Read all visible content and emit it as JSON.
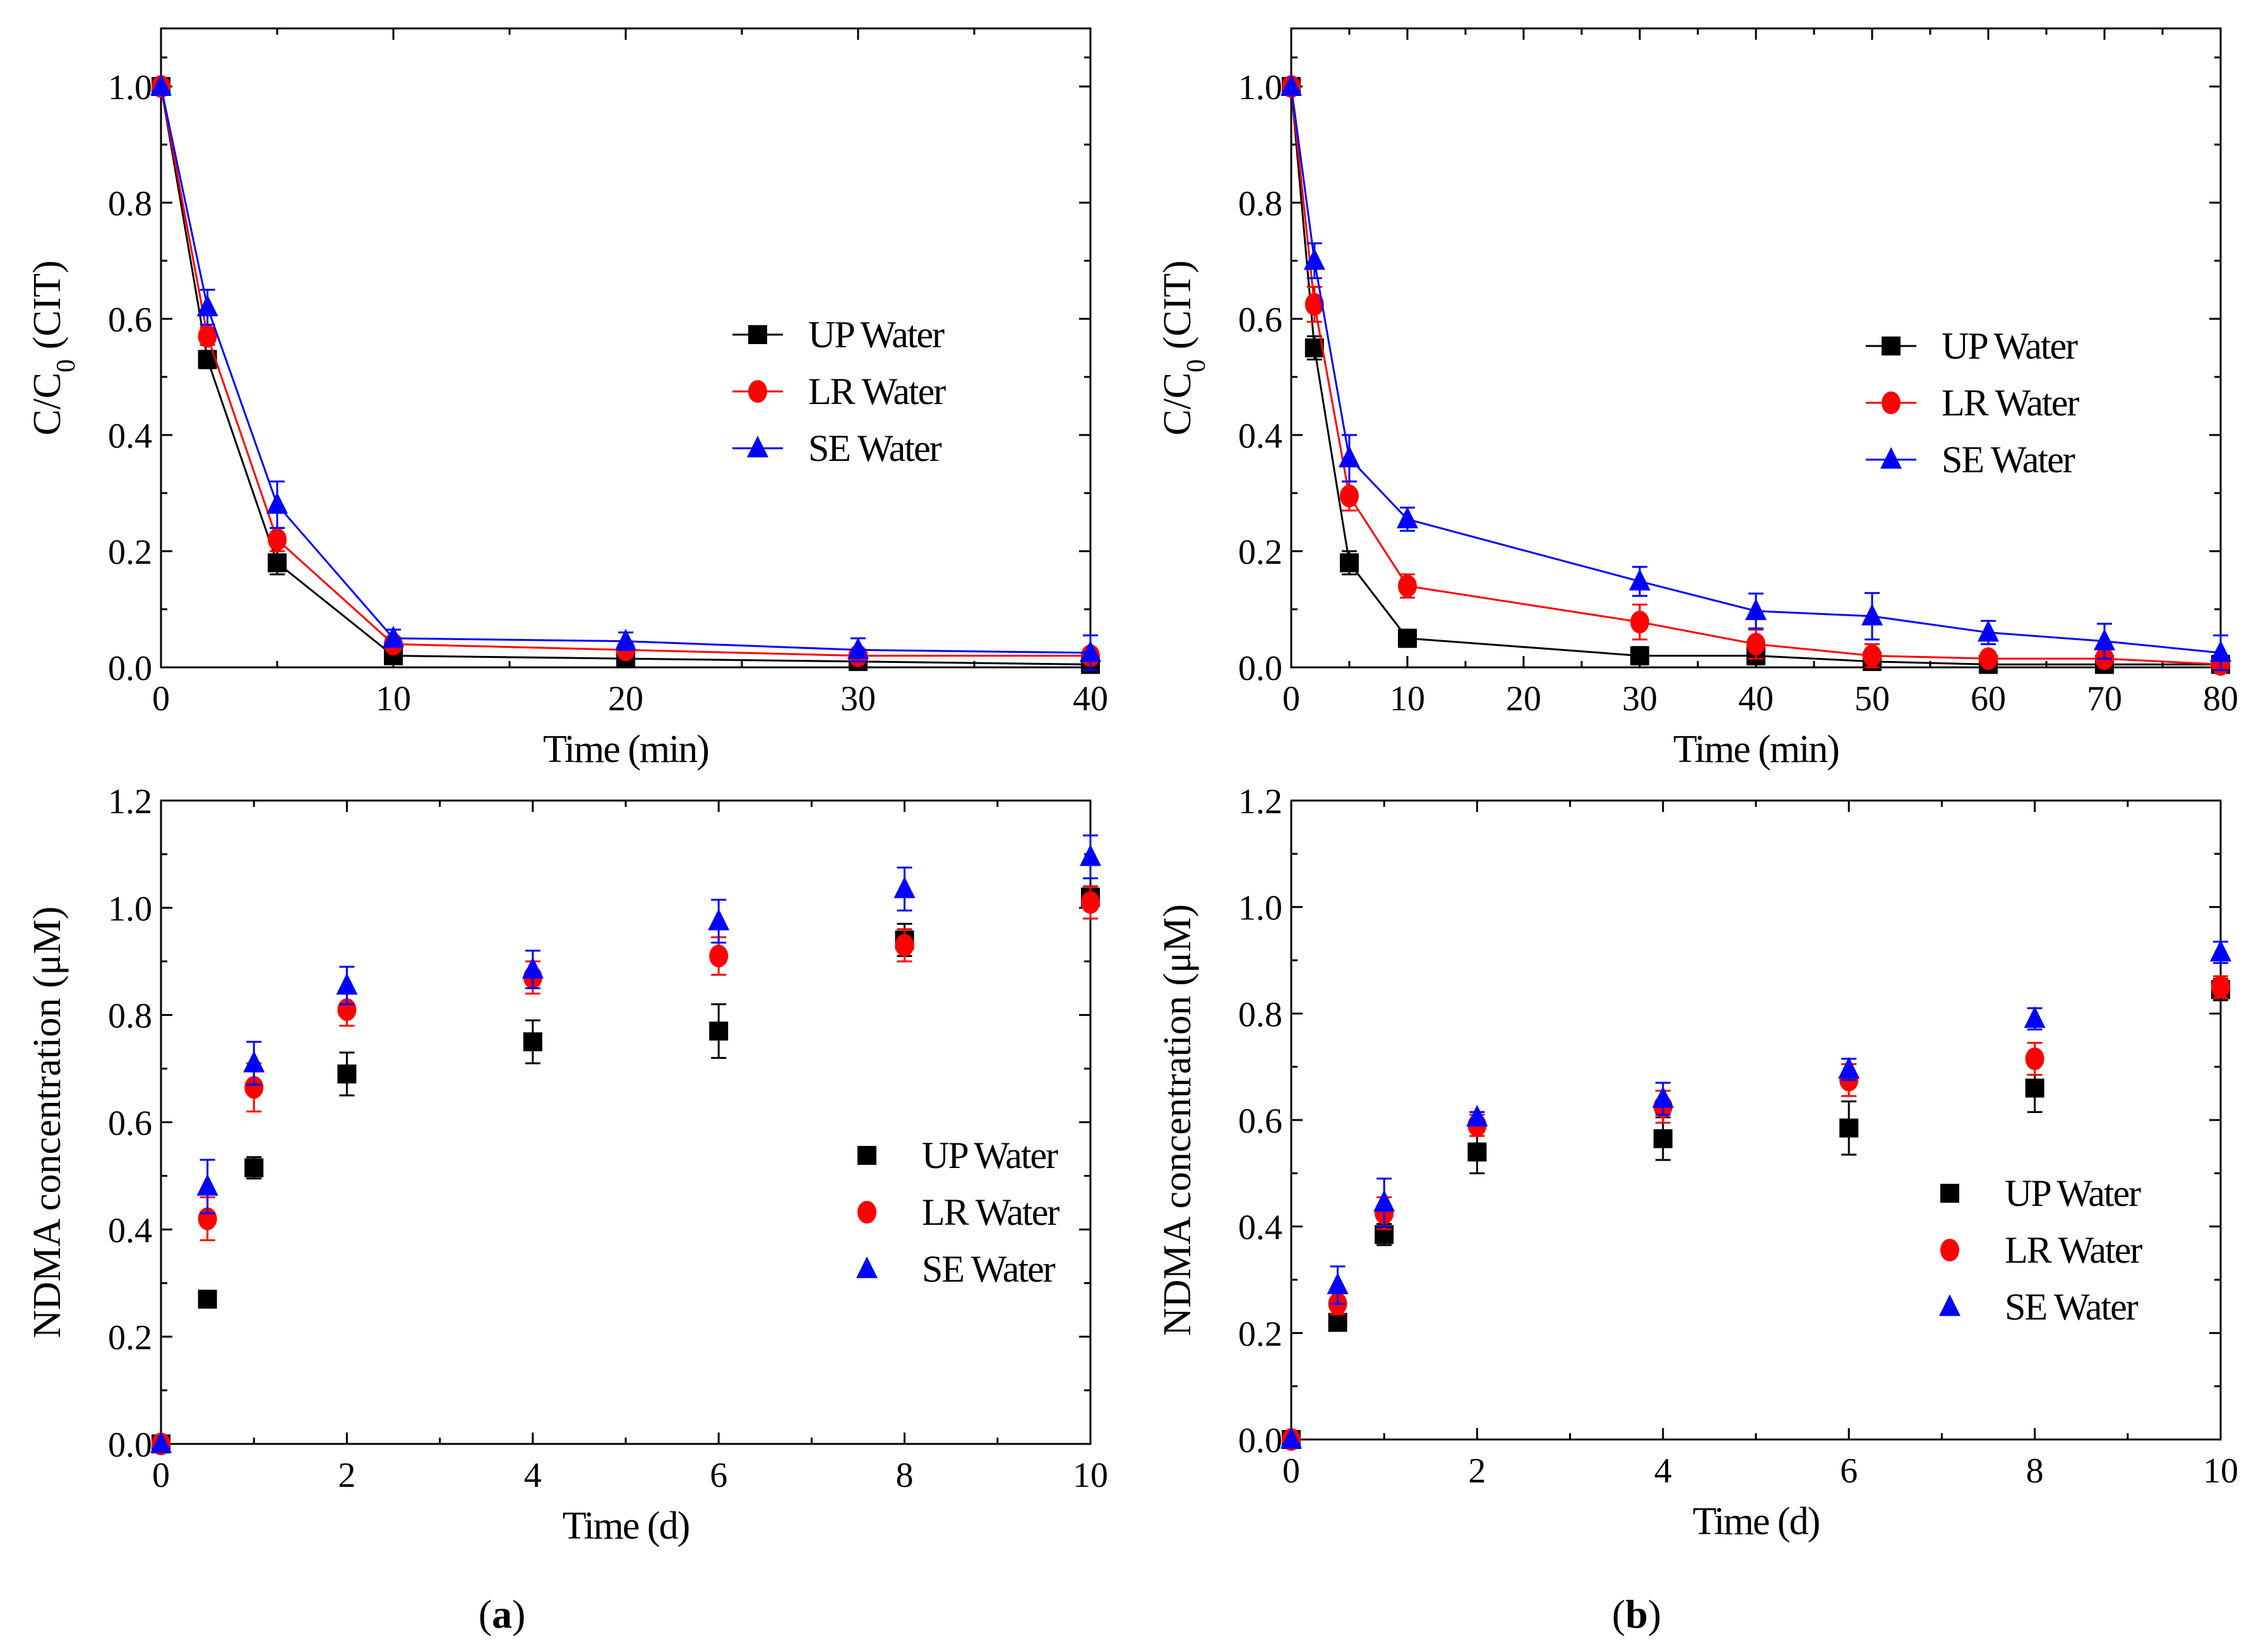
{
  "colors": {
    "UP Water": "#000000",
    "LR Water": "#ff0000",
    "SE Water": "#0000ff"
  },
  "captions": {
    "a": "a",
    "b": "b"
  },
  "chart_data": [
    {
      "id": "top-left",
      "type": "line",
      "xlabel": "Time (min)",
      "ylabel": "C/C",
      "ylabel_sub": "0",
      "ylabel_suffix": " (CIT)",
      "xlim": [
        0,
        40
      ],
      "ylim": [
        0,
        1.1
      ],
      "xticks": [
        0,
        10,
        20,
        30,
        40
      ],
      "yticks": [
        0,
        0.2,
        0.4,
        0.6,
        0.8,
        1.0
      ],
      "ytick_labels": [
        "0.0",
        "0.2",
        "0.4",
        "0.6",
        "0.8",
        "1.0"
      ],
      "legend_position": "right",
      "x": [
        0,
        2,
        5,
        10,
        20,
        30,
        40
      ],
      "series": [
        {
          "name": "UP Water",
          "marker": "square",
          "values": [
            1.0,
            0.53,
            0.18,
            0.02,
            0.015,
            0.01,
            0.005
          ],
          "errors": [
            0,
            0.015,
            0.02,
            0.01,
            0.01,
            0.01,
            0.005
          ]
        },
        {
          "name": "LR Water",
          "marker": "circle",
          "values": [
            1.0,
            0.57,
            0.22,
            0.04,
            0.03,
            0.02,
            0.02
          ],
          "errors": [
            0,
            0.015,
            0.02,
            0.01,
            0.01,
            0.01,
            0.01
          ]
        },
        {
          "name": "SE Water",
          "marker": "triangle",
          "values": [
            1.0,
            0.62,
            0.28,
            0.05,
            0.045,
            0.03,
            0.025
          ],
          "errors": [
            0,
            0.03,
            0.04,
            0.015,
            0.015,
            0.02,
            0.03
          ]
        }
      ]
    },
    {
      "id": "top-right",
      "type": "line",
      "xlabel": "Time (min)",
      "ylabel": "C/C",
      "ylabel_sub": "0",
      "ylabel_suffix": " (CIT)",
      "xlim": [
        0,
        80
      ],
      "ylim": [
        0,
        1.1
      ],
      "xticks": [
        0,
        10,
        20,
        30,
        40,
        50,
        60,
        70,
        80
      ],
      "yticks": [
        0,
        0.2,
        0.4,
        0.6,
        0.8,
        1.0
      ],
      "ytick_labels": [
        "0.0",
        "0.2",
        "0.4",
        "0.6",
        "0.8",
        "1.0"
      ],
      "legend_position": "right",
      "x": [
        0,
        2,
        5,
        10,
        30,
        40,
        50,
        60,
        70,
        80
      ],
      "series": [
        {
          "name": "UP Water",
          "marker": "square",
          "values": [
            1.0,
            0.55,
            0.18,
            0.05,
            0.02,
            0.02,
            0.01,
            0.005,
            0.005,
            0.005
          ],
          "errors": [
            0,
            0.02,
            0.02,
            0.015,
            0.015,
            0.015,
            0.01,
            0.005,
            0.005,
            0.005
          ]
        },
        {
          "name": "LR Water",
          "marker": "circle",
          "values": [
            1.0,
            0.625,
            0.295,
            0.14,
            0.078,
            0.04,
            0.02,
            0.015,
            0.015,
            0.005
          ],
          "errors": [
            0,
            0.03,
            0.025,
            0.02,
            0.03,
            0.025,
            0.02,
            0.01,
            0.01,
            0.005
          ]
        },
        {
          "name": "SE Water",
          "marker": "triangle",
          "values": [
            1.0,
            0.7,
            0.36,
            0.255,
            0.148,
            0.097,
            0.088,
            0.06,
            0.045,
            0.025
          ],
          "errors": [
            0,
            0.03,
            0.04,
            0.02,
            0.025,
            0.03,
            0.04,
            0.02,
            0.03,
            0.03
          ]
        }
      ]
    },
    {
      "id": "bottom-left",
      "type": "scatter",
      "xlabel": "Time (d)",
      "ylabel": "NDMA  concentration (μM)",
      "xlim": [
        0,
        10
      ],
      "ylim": [
        0,
        1.2
      ],
      "xticks": [
        0,
        2,
        4,
        6,
        8,
        10
      ],
      "yticks": [
        0,
        0.2,
        0.4,
        0.6,
        0.8,
        1.0,
        1.2
      ],
      "ytick_labels": [
        "0.0",
        "0.2",
        "0.4",
        "0.6",
        "0.8",
        "1.0",
        "1.2"
      ],
      "legend_position": "bottom-right",
      "x": [
        0,
        0.5,
        1,
        2,
        4,
        6,
        8,
        10
      ],
      "series": [
        {
          "name": "UP Water",
          "marker": "square",
          "values": [
            0,
            0.27,
            0.515,
            0.69,
            0.75,
            0.77,
            0.94,
            1.02
          ],
          "errors": [
            0,
            0.01,
            0.02,
            0.04,
            0.04,
            0.05,
            0.03,
            0.02
          ]
        },
        {
          "name": "LR Water",
          "marker": "circle",
          "values": [
            0,
            0.42,
            0.665,
            0.81,
            0.87,
            0.91,
            0.93,
            1.01
          ],
          "errors": [
            0,
            0.04,
            0.045,
            0.03,
            0.03,
            0.035,
            0.03,
            0.03
          ]
        },
        {
          "name": "SE Water",
          "marker": "triangle",
          "values": [
            0,
            0.48,
            0.71,
            0.855,
            0.885,
            0.975,
            1.035,
            1.095
          ],
          "errors": [
            0,
            0.05,
            0.04,
            0.035,
            0.035,
            0.04,
            0.04,
            0.04
          ]
        }
      ]
    },
    {
      "id": "bottom-right",
      "type": "scatter",
      "xlabel": "Time (d)",
      "ylabel": "NDMA  concentration (μM)",
      "xlim": [
        0,
        10
      ],
      "ylim": [
        0,
        1.2
      ],
      "xticks": [
        0,
        2,
        4,
        6,
        8,
        10
      ],
      "yticks": [
        0,
        0.2,
        0.4,
        0.6,
        0.8,
        1.0,
        1.2
      ],
      "ytick_labels": [
        "0.0",
        "0.2",
        "0.4",
        "0.6",
        "0.8",
        "1.0",
        "1.2"
      ],
      "legend_position": "bottom-right",
      "x": [
        0,
        0.5,
        1,
        2,
        4,
        6,
        8,
        10
      ],
      "series": [
        {
          "name": "UP Water",
          "marker": "square",
          "values": [
            0,
            0.22,
            0.385,
            0.54,
            0.565,
            0.585,
            0.66,
            0.845
          ],
          "errors": [
            0,
            0.01,
            0.02,
            0.04,
            0.04,
            0.05,
            0.045,
            0.02
          ]
        },
        {
          "name": "LR Water",
          "marker": "circle",
          "values": [
            0,
            0.255,
            0.425,
            0.59,
            0.625,
            0.675,
            0.715,
            0.85
          ],
          "errors": [
            0,
            0.02,
            0.03,
            0.02,
            0.03,
            0.03,
            0.03,
            0.02
          ]
        },
        {
          "name": "SE Water",
          "marker": "triangle",
          "values": [
            0,
            0.29,
            0.445,
            0.605,
            0.64,
            0.695,
            0.79,
            0.915
          ],
          "errors": [
            0,
            0.035,
            0.045,
            0.01,
            0.03,
            0.02,
            0.02,
            0.02
          ]
        }
      ]
    }
  ]
}
